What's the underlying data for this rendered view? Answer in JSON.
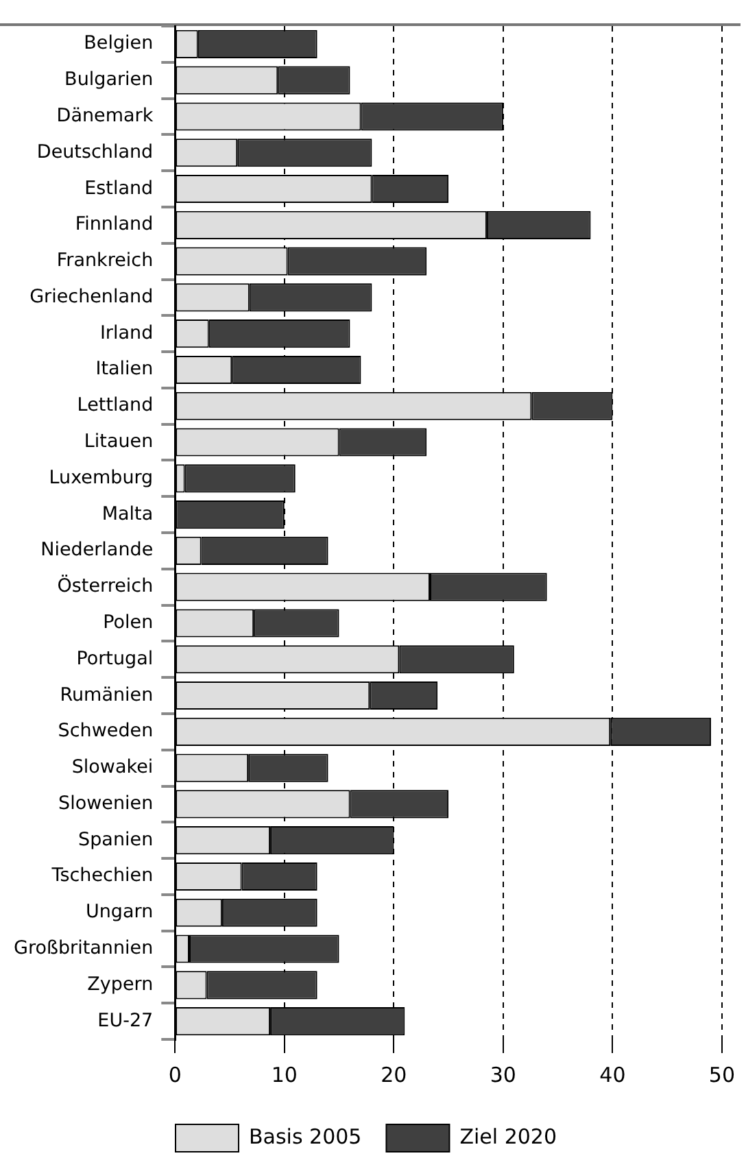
{
  "chart_data": {
    "type": "bar",
    "orientation": "horizontal",
    "stacked": true,
    "categories": [
      "Belgien",
      "Bulgarien",
      "Dänemark",
      "Deutschland",
      "Estland",
      "Finnland",
      "Frankreich",
      "Griechenland",
      "Irland",
      "Italien",
      "Lettland",
      "Litauen",
      "Luxemburg",
      "Malta",
      "Niederlande",
      "Österreich",
      "Polen",
      "Portugal",
      "Rumänien",
      "Schweden",
      "Slowakei",
      "Slowenien",
      "Spanien",
      "Tschechien",
      "Ungarn",
      "Großbritannien",
      "Zypern",
      "EU-27"
    ],
    "series": [
      {
        "name": "Basis 2005",
        "color": "#dedede",
        "values": [
          2.1,
          9.4,
          17.0,
          5.7,
          18.0,
          28.5,
          10.3,
          6.8,
          3.1,
          5.2,
          32.6,
          15.0,
          0.9,
          0,
          2.4,
          23.3,
          7.2,
          20.5,
          17.8,
          39.8,
          6.7,
          16.0,
          8.7,
          6.1,
          4.3,
          1.3,
          2.9,
          8.7
        ]
      },
      {
        "name": "Ziel 2020",
        "color": "#404040",
        "values": [
          10.9,
          6.6,
          13.0,
          12.3,
          7.0,
          9.5,
          12.7,
          11.2,
          12.9,
          11.8,
          7.4,
          8.0,
          10.1,
          10,
          11.6,
          10.7,
          7.8,
          10.5,
          6.2,
          9.2,
          7.3,
          9.0,
          11.3,
          6.9,
          8.7,
          13.7,
          10.1,
          12.3
        ]
      }
    ],
    "xlim": [
      0,
      50
    ],
    "xticks": [
      0,
      10,
      20,
      30,
      40,
      50
    ],
    "grid": "x",
    "legend": "bottom"
  }
}
